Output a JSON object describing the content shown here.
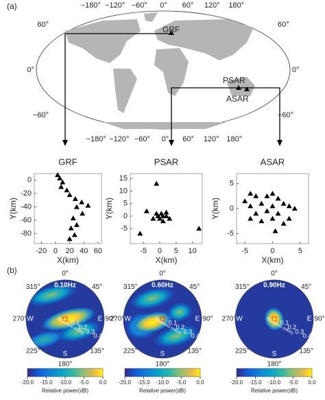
{
  "panel_labels": [
    "(a)",
    "(b)"
  ],
  "map": {
    "lon_ticks": [
      {
        "value": -180,
        "label": "−180°"
      },
      {
        "value": -120,
        "label": "−120°"
      },
      {
        "value": -60,
        "label": "−60°"
      },
      {
        "value": 0,
        "label": "0°"
      },
      {
        "value": 60,
        "label": "60°"
      },
      {
        "value": 120,
        "label": "120°"
      },
      {
        "value": 180,
        "label": "180°"
      }
    ],
    "lat_ticks": [
      {
        "value": 60,
        "label": "60°"
      },
      {
        "value": 0,
        "label": "0°"
      },
      {
        "value": -60,
        "label": "−60°"
      }
    ],
    "stations": [
      "GRF",
      "PSAR",
      "ASAR"
    ]
  },
  "chart_data": [
    {
      "type": "scatter",
      "title": "GRF",
      "x_label": "X(km)",
      "y_label": "Y(km)",
      "color": "#000000",
      "x": [
        3,
        6,
        10,
        8,
        16,
        20,
        28,
        37,
        46,
        30,
        38,
        25,
        30,
        22,
        27,
        20
      ],
      "y": [
        8,
        3,
        -3,
        -10,
        -15,
        -22,
        -28,
        -33,
        -38,
        -40,
        -50,
        -57,
        -67,
        -72,
        -82,
        -88
      ],
      "xlim": [
        -30,
        65
      ],
      "ylim": [
        -95,
        10
      ],
      "xticks": [
        -20,
        0,
        20,
        40,
        60
      ],
      "yticks": [
        0,
        -20,
        -40,
        -60,
        -80
      ]
    },
    {
      "type": "scatter",
      "title": "PSAR",
      "x_label": "X(km)",
      "y_label": "Y(km)",
      "color": "#000000",
      "x": [
        -1,
        -4,
        -2,
        0,
        1,
        0.5,
        2,
        1,
        -1,
        3,
        2,
        12,
        -6,
        -0.5
      ],
      "y": [
        13,
        2,
        -1,
        -1,
        0,
        1,
        1.5,
        -2,
        1,
        -1,
        0,
        -5,
        -7,
        0
      ],
      "xlim": [
        -9,
        13
      ],
      "ylim": [
        -11,
        17
      ],
      "xticks": [
        -5,
        0,
        5,
        10
      ],
      "yticks": [
        15,
        10,
        5,
        0,
        -5
      ]
    },
    {
      "type": "scatter",
      "title": "ASAR",
      "x_label": "X(km)",
      "y_label": "Y(km)",
      "color": "#000000",
      "x": [
        -5,
        -4,
        -3,
        -4,
        -3,
        -2,
        -1,
        0,
        1,
        -1,
        0,
        1,
        2,
        3,
        4,
        -2,
        0,
        2,
        3,
        -4,
        0.5
      ],
      "y": [
        1.5,
        3,
        2.5,
        0.5,
        -1,
        1,
        2.5,
        3,
        2,
        -0.5,
        0.5,
        -1,
        1,
        0.5,
        0,
        -2.5,
        -2,
        -3,
        -2,
        -2,
        -4.5
      ],
      "xlim": [
        -6.5,
        6.5
      ],
      "ylim": [
        -7,
        7
      ],
      "xticks": [
        -5,
        0,
        5
      ],
      "yticks": [
        5,
        0,
        -5
      ]
    }
  ],
  "polar": {
    "frequencies": [
      "0.10Hz",
      "0.60Hz",
      "0.90Hz"
    ],
    "directions": [
      "0°",
      "45°",
      "90°",
      "135°",
      "180°",
      "225°",
      "270°",
      "315°"
    ],
    "cardinals": [
      "E",
      "S",
      "W"
    ],
    "slowness_ticks": [
      0.1,
      0.2,
      0.3,
      0.4
    ],
    "rlim": [
      0,
      0.45
    ],
    "slowness_label": "Slowness (s/km)",
    "colorbar": {
      "clim": [
        -20,
        0
      ],
      "ticks": [
        {
          "value": -20,
          "label": "-20.0"
        },
        {
          "value": -15,
          "label": "-15.0"
        },
        {
          "value": -10,
          "label": "-10.0"
        },
        {
          "value": -5,
          "label": "-5.0"
        },
        {
          "value": 0,
          "label": "0.0"
        }
      ],
      "label": "Relative power(dB)"
    }
  }
}
